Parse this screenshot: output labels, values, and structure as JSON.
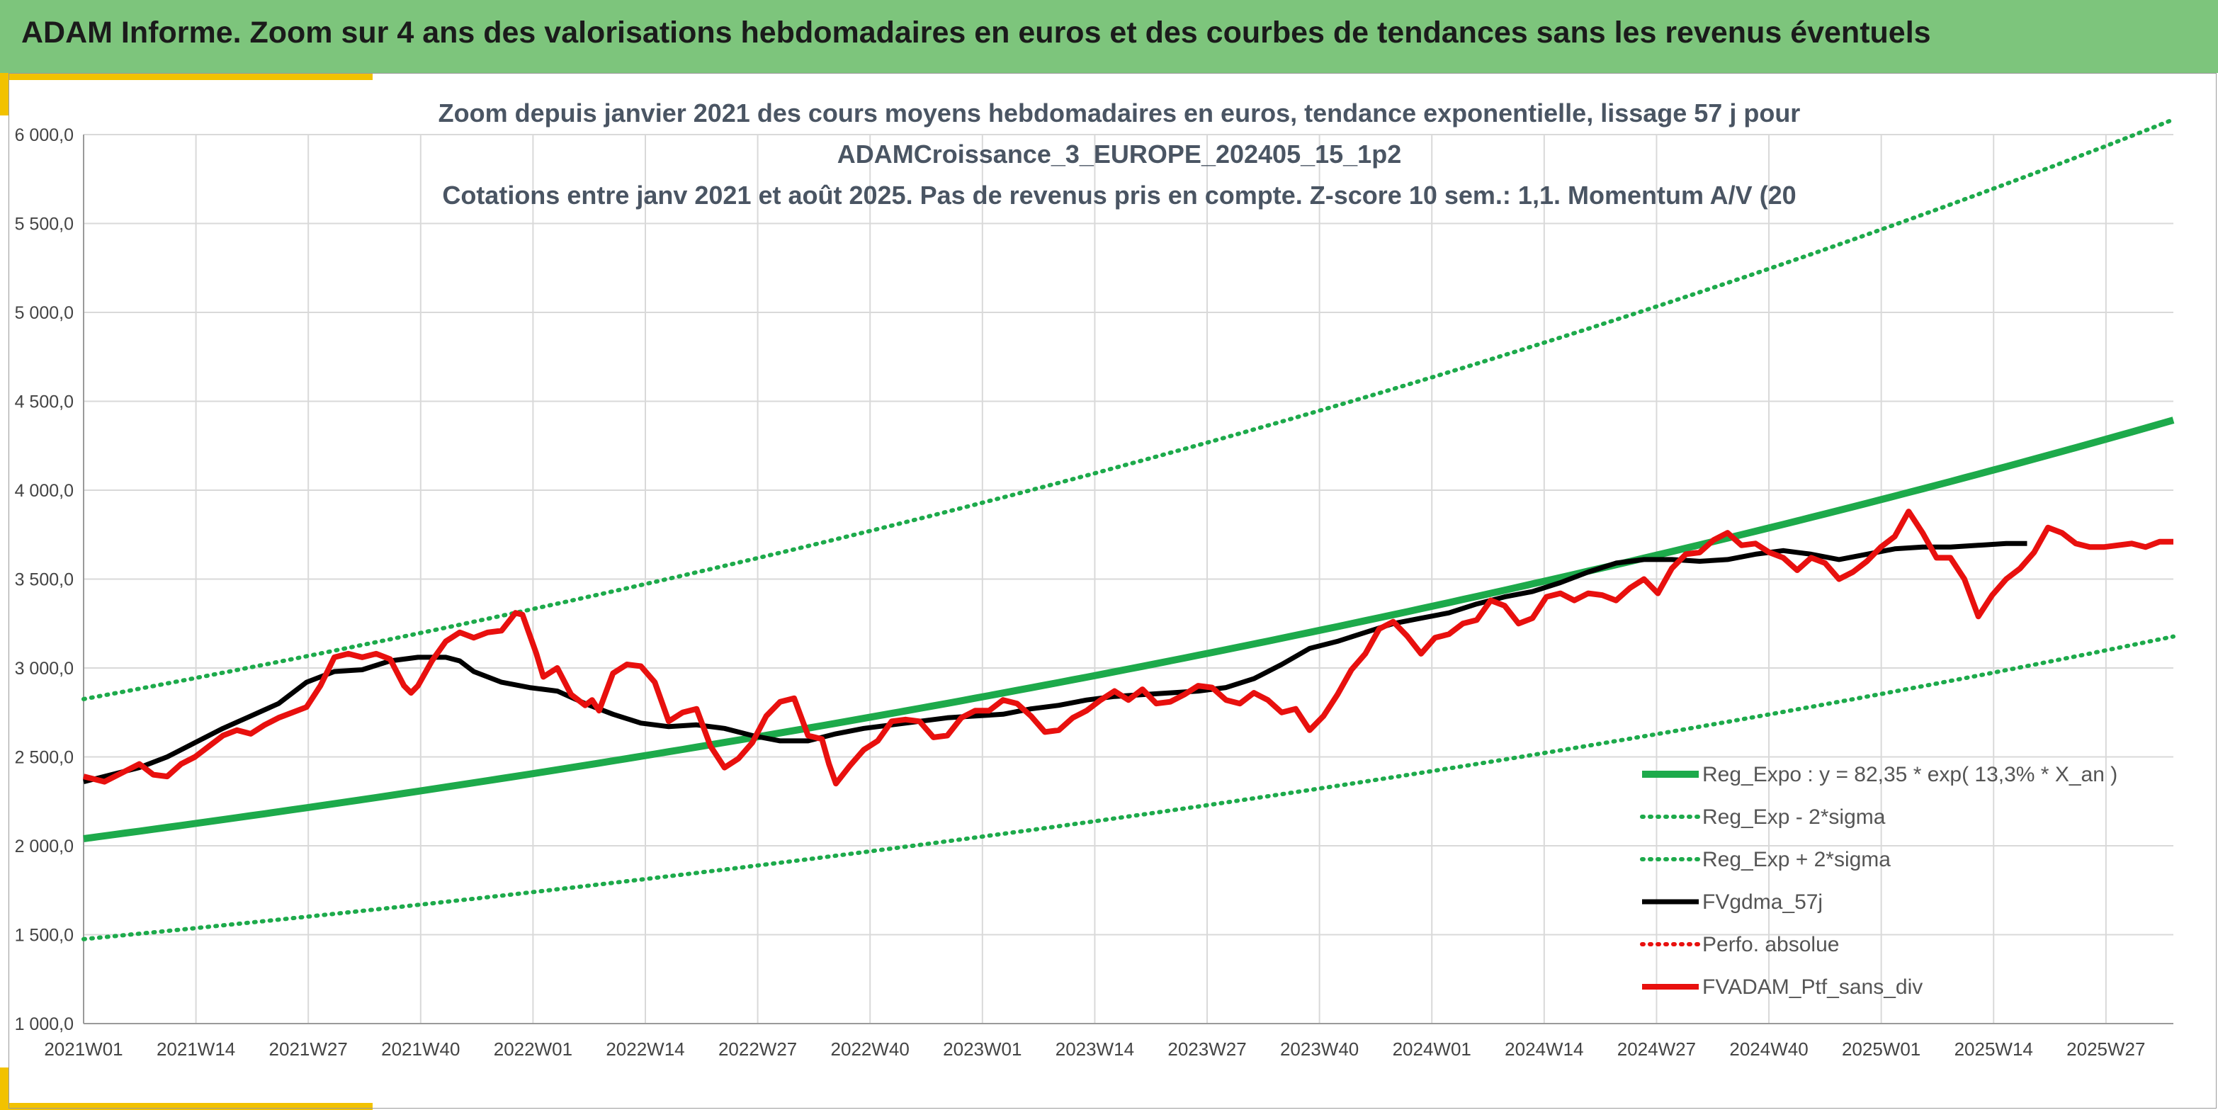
{
  "header": {
    "title": "ADAM Informe. Zoom sur 4 ans des valorisations hebdomadaires en euros et des courbes de tendances sans les revenus éventuels"
  },
  "colors": {
    "banner": "#7dc57c",
    "accent": "#f2c200",
    "trend_green": "#1daa4b",
    "smooth_black": "#000000",
    "portfolio_red": "#e8100e",
    "grid": "#d9d9d9"
  },
  "chart_data": {
    "type": "line",
    "title_lines": [
      "Zoom depuis janvier 2021 des cours moyens hebdomadaires en euros, tendance exponentielle, lissage 57 j pour",
      "ADAMCroissance_3_EUROPE_202405_15_1p2",
      "Cotations entre janv 2021 et août 2025. Pas de revenus pris en compte. Z-score 10 sem.: 1,1. Momentum A/V (20"
    ],
    "xlabel": "",
    "ylabel": "",
    "ylim": [
      1000,
      6000
    ],
    "yticks": [
      "1 000,0",
      "1 500,0",
      "2 000,0",
      "2 500,0",
      "3 000,0",
      "3 500,0",
      "4 000,0",
      "4 500,0",
      "5 000,0",
      "5 500,0",
      "6 000,0"
    ],
    "xticks": [
      "2021W01",
      "2021W14",
      "2021W27",
      "2021W40",
      "2022W01",
      "2022W14",
      "2022W27",
      "2022W40",
      "2023W01",
      "2023W14",
      "2023W27",
      "2023W40",
      "2024W01",
      "2024W14",
      "2024W27",
      "2024W40",
      "2025W01",
      "2025W14",
      "2025W27"
    ],
    "week_count": 243,
    "grid": true,
    "legend_position": "bottom-right",
    "series": [
      {
        "name": "Reg_Expo : y = 82,35 * exp( 13,3% *  X_an )",
        "style": "solid-thick",
        "color": "#1daa4b",
        "formula": {
          "start": 2040,
          "annual_rate": 0.133
        }
      },
      {
        "name": "Reg_Exp - 2*sigma",
        "style": "dotted",
        "color": "#1daa4b",
        "formula": {
          "start": 1475,
          "annual_rate": 0.133
        }
      },
      {
        "name": "Reg_Exp + 2*sigma",
        "style": "dotted",
        "color": "#1daa4b",
        "formula": {
          "start": 2825,
          "annual_rate": 0.133
        }
      },
      {
        "name": "FVgdma_57j",
        "style": "solid",
        "color": "#000000",
        "points": [
          [
            0,
            2360
          ],
          [
            4,
            2400
          ],
          [
            8,
            2440
          ],
          [
            12,
            2500
          ],
          [
            16,
            2580
          ],
          [
            20,
            2660
          ],
          [
            24,
            2730
          ],
          [
            28,
            2800
          ],
          [
            32,
            2920
          ],
          [
            36,
            2980
          ],
          [
            40,
            2990
          ],
          [
            44,
            3040
          ],
          [
            48,
            3060
          ],
          [
            52,
            3060
          ],
          [
            54,
            3040
          ],
          [
            56,
            2980
          ],
          [
            60,
            2920
          ],
          [
            64,
            2890
          ],
          [
            68,
            2870
          ],
          [
            72,
            2800
          ],
          [
            76,
            2740
          ],
          [
            80,
            2690
          ],
          [
            84,
            2670
          ],
          [
            88,
            2680
          ],
          [
            92,
            2660
          ],
          [
            96,
            2620
          ],
          [
            100,
            2590
          ],
          [
            104,
            2590
          ],
          [
            108,
            2630
          ],
          [
            112,
            2660
          ],
          [
            116,
            2680
          ],
          [
            120,
            2700
          ],
          [
            124,
            2720
          ],
          [
            128,
            2730
          ],
          [
            132,
            2740
          ],
          [
            136,
            2770
          ],
          [
            140,
            2790
          ],
          [
            144,
            2820
          ],
          [
            148,
            2840
          ],
          [
            152,
            2850
          ],
          [
            156,
            2860
          ],
          [
            160,
            2870
          ],
          [
            164,
            2890
          ],
          [
            168,
            2940
          ],
          [
            172,
            3020
          ],
          [
            176,
            3110
          ],
          [
            180,
            3150
          ],
          [
            184,
            3200
          ],
          [
            188,
            3250
          ],
          [
            192,
            3280
          ],
          [
            196,
            3310
          ],
          [
            200,
            3360
          ],
          [
            204,
            3400
          ],
          [
            208,
            3430
          ],
          [
            212,
            3480
          ],
          [
            216,
            3540
          ],
          [
            220,
            3590
          ],
          [
            224,
            3610
          ],
          [
            228,
            3610
          ],
          [
            232,
            3600
          ],
          [
            236,
            3610
          ],
          [
            240,
            3640
          ],
          [
            244,
            3660
          ],
          [
            248,
            3640
          ],
          [
            252,
            3610
          ],
          [
            256,
            3640
          ],
          [
            260,
            3670
          ],
          [
            264,
            3680
          ],
          [
            268,
            3680
          ],
          [
            272,
            3690
          ],
          [
            276,
            3700
          ],
          [
            279,
            3700
          ]
        ]
      },
      {
        "name": "Perfo. absolue",
        "style": "dotted",
        "color": "#e8100e"
      },
      {
        "name": "FVADAM_Ptf_sans_div",
        "style": "solid-thick",
        "color": "#e8100e",
        "points": [
          [
            0,
            2390
          ],
          [
            3,
            2360
          ],
          [
            6,
            2420
          ],
          [
            8,
            2460
          ],
          [
            10,
            2400
          ],
          [
            12,
            2390
          ],
          [
            14,
            2460
          ],
          [
            16,
            2500
          ],
          [
            18,
            2560
          ],
          [
            20,
            2620
          ],
          [
            22,
            2650
          ],
          [
            24,
            2630
          ],
          [
            26,
            2680
          ],
          [
            28,
            2720
          ],
          [
            30,
            2750
          ],
          [
            32,
            2780
          ],
          [
            34,
            2900
          ],
          [
            36,
            3060
          ],
          [
            38,
            3080
          ],
          [
            40,
            3060
          ],
          [
            42,
            3080
          ],
          [
            44,
            3050
          ],
          [
            46,
            2900
          ],
          [
            47,
            2860
          ],
          [
            48,
            2900
          ],
          [
            50,
            3040
          ],
          [
            52,
            3150
          ],
          [
            54,
            3200
          ],
          [
            56,
            3170
          ],
          [
            58,
            3200
          ],
          [
            60,
            3210
          ],
          [
            62,
            3310
          ],
          [
            63,
            3300
          ],
          [
            65,
            3080
          ],
          [
            66,
            2950
          ],
          [
            68,
            3000
          ],
          [
            70,
            2850
          ],
          [
            72,
            2790
          ],
          [
            73,
            2820
          ],
          [
            74,
            2760
          ],
          [
            76,
            2970
          ],
          [
            78,
            3020
          ],
          [
            80,
            3010
          ],
          [
            82,
            2920
          ],
          [
            84,
            2700
          ],
          [
            86,
            2750
          ],
          [
            88,
            2770
          ],
          [
            90,
            2560
          ],
          [
            92,
            2440
          ],
          [
            94,
            2490
          ],
          [
            96,
            2580
          ],
          [
            98,
            2730
          ],
          [
            100,
            2810
          ],
          [
            102,
            2830
          ],
          [
            104,
            2620
          ],
          [
            106,
            2600
          ],
          [
            107,
            2460
          ],
          [
            108,
            2350
          ],
          [
            110,
            2450
          ],
          [
            112,
            2540
          ],
          [
            114,
            2590
          ],
          [
            116,
            2700
          ],
          [
            118,
            2710
          ],
          [
            120,
            2700
          ],
          [
            122,
            2610
          ],
          [
            124,
            2620
          ],
          [
            126,
            2720
          ],
          [
            128,
            2760
          ],
          [
            130,
            2760
          ],
          [
            132,
            2820
          ],
          [
            134,
            2800
          ],
          [
            136,
            2730
          ],
          [
            138,
            2640
          ],
          [
            140,
            2650
          ],
          [
            142,
            2720
          ],
          [
            144,
            2760
          ],
          [
            146,
            2820
          ],
          [
            148,
            2870
          ],
          [
            150,
            2820
          ],
          [
            152,
            2880
          ],
          [
            154,
            2800
          ],
          [
            156,
            2810
          ],
          [
            158,
            2850
          ],
          [
            160,
            2900
          ],
          [
            162,
            2890
          ],
          [
            164,
            2820
          ],
          [
            166,
            2800
          ],
          [
            168,
            2860
          ],
          [
            170,
            2820
          ],
          [
            172,
            2750
          ],
          [
            174,
            2770
          ],
          [
            176,
            2650
          ],
          [
            178,
            2730
          ],
          [
            180,
            2850
          ],
          [
            182,
            2990
          ],
          [
            184,
            3080
          ],
          [
            186,
            3220
          ],
          [
            188,
            3260
          ],
          [
            190,
            3180
          ],
          [
            192,
            3080
          ],
          [
            194,
            3170
          ],
          [
            196,
            3190
          ],
          [
            198,
            3250
          ],
          [
            200,
            3270
          ],
          [
            202,
            3380
          ],
          [
            204,
            3350
          ],
          [
            206,
            3250
          ],
          [
            208,
            3280
          ],
          [
            210,
            3400
          ],
          [
            212,
            3420
          ],
          [
            214,
            3380
          ],
          [
            216,
            3420
          ],
          [
            218,
            3410
          ],
          [
            220,
            3380
          ],
          [
            222,
            3450
          ],
          [
            224,
            3500
          ],
          [
            226,
            3420
          ],
          [
            228,
            3560
          ],
          [
            230,
            3640
          ],
          [
            232,
            3650
          ],
          [
            234,
            3720
          ],
          [
            236,
            3760
          ],
          [
            238,
            3690
          ],
          [
            240,
            3700
          ],
          [
            242,
            3650
          ],
          [
            244,
            3620
          ],
          [
            246,
            3550
          ],
          [
            248,
            3620
          ],
          [
            250,
            3590
          ],
          [
            252,
            3500
          ],
          [
            254,
            3540
          ],
          [
            256,
            3600
          ],
          [
            258,
            3680
          ],
          [
            260,
            3740
          ],
          [
            262,
            3880
          ],
          [
            264,
            3760
          ],
          [
            266,
            3620
          ],
          [
            268,
            3620
          ],
          [
            270,
            3500
          ],
          [
            272,
            3290
          ],
          [
            274,
            3410
          ],
          [
            276,
            3500
          ],
          [
            278,
            3560
          ],
          [
            280,
            3650
          ],
          [
            282,
            3790
          ],
          [
            284,
            3760
          ],
          [
            286,
            3700
          ],
          [
            288,
            3680
          ],
          [
            290,
            3680
          ],
          [
            292,
            3690
          ],
          [
            294,
            3700
          ],
          [
            296,
            3680
          ],
          [
            298,
            3710
          ],
          [
            300,
            3710
          ]
        ]
      }
    ]
  }
}
